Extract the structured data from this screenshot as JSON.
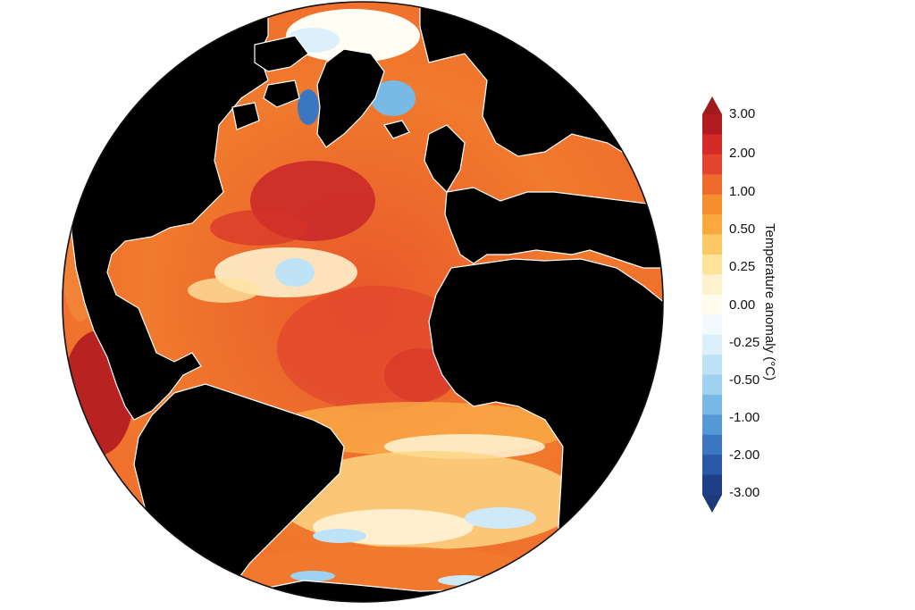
{
  "legend": {
    "title": "Temperature anomaly (°C)",
    "ticks": [
      "3.00",
      "2.00",
      "1.00",
      "0.50",
      "0.25",
      "0.00",
      "-0.25",
      "-0.50",
      "-1.00",
      "-2.00",
      "-3.00"
    ],
    "bins": [
      {
        "color": "#b11b20"
      },
      {
        "color": "#d52b28"
      },
      {
        "color": "#e4452e"
      },
      {
        "color": "#ef6a2d"
      },
      {
        "color": "#f58f2e"
      },
      {
        "color": "#faa93e"
      },
      {
        "color": "#fdc866"
      },
      {
        "color": "#fee39a"
      },
      {
        "color": "#fff2cf"
      },
      {
        "color": "#fffbee"
      },
      {
        "color": "#f3fafe"
      },
      {
        "color": "#dcf0fb"
      },
      {
        "color": "#bee3f6"
      },
      {
        "color": "#9fd2f0"
      },
      {
        "color": "#79b9e5"
      },
      {
        "color": "#5598d6"
      },
      {
        "color": "#3a76c2"
      },
      {
        "color": "#2b58a8"
      },
      {
        "color": "#1f3f88"
      }
    ],
    "over_color": "#a11a1e",
    "under_color": "#1f3a7a"
  },
  "map": {
    "projection": "orthographic",
    "land_color": "#000000",
    "dominant_ocean_color": "#f0732c"
  }
}
